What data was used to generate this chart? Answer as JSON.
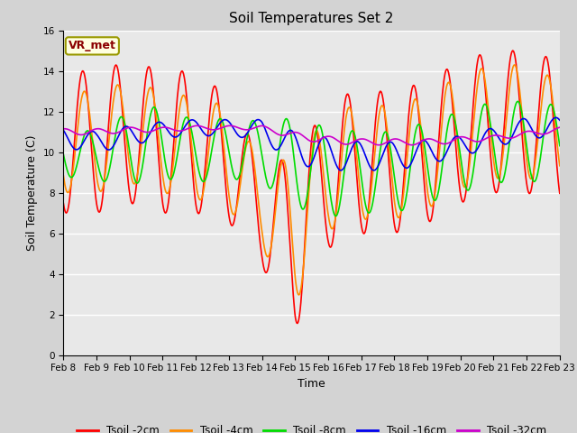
{
  "title": "Soil Temperatures Set 2",
  "xlabel": "Time",
  "ylabel": "Soil Temperature (C)",
  "ylim": [
    0,
    16
  ],
  "yticks": [
    0,
    2,
    4,
    6,
    8,
    10,
    12,
    14,
    16
  ],
  "xlabels": [
    "Feb 8",
    "Feb 9",
    "Feb 10",
    "Feb 11",
    "Feb 12",
    "Feb 13",
    "Feb 14",
    "Feb 15",
    "Feb 16",
    "Feb 17",
    "Feb 18",
    "Feb 19",
    "Feb 20",
    "Feb 21",
    "Feb 22",
    "Feb 23"
  ],
  "annotation": "VR_met",
  "fig_facecolor": "#d3d3d3",
  "plot_bg_color": "#e8e8e8",
  "line_colors": {
    "Tsoil -2cm": "#ff0000",
    "Tsoil -4cm": "#ff8c00",
    "Tsoil -8cm": "#00dd00",
    "Tsoil -16cm": "#0000ee",
    "Tsoil -32cm": "#cc00cc"
  },
  "legend_labels": [
    "Tsoil -2cm",
    "Tsoil -4cm",
    "Tsoil -8cm",
    "Tsoil -16cm",
    "Tsoil -32cm"
  ]
}
